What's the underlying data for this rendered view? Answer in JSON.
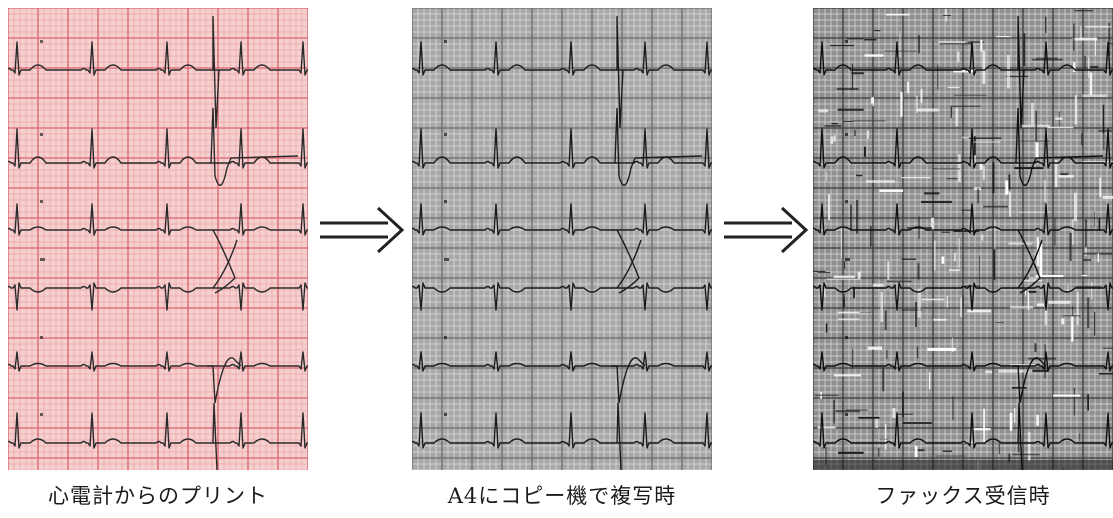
{
  "panels": [
    {
      "id": "original",
      "caption": "心電計からのプリント",
      "style": "pink-paper",
      "background": "#f6cfcf",
      "minor_grid": "#eaa3a6",
      "major_grid": "#d9636c",
      "trace": "#2a2a2a"
    },
    {
      "id": "copy",
      "caption": "A4にコピー機で複写時",
      "style": "grey-copy",
      "background": "#a7a7a7",
      "minor_grid": "#d8d8d8",
      "major_grid": "#6d6d6d",
      "trace": "#1c1c1c"
    },
    {
      "id": "fax",
      "caption": "ファックス受信時",
      "style": "fax-noise",
      "background": "#8f8f8f",
      "minor_grid": "#e4e4e4",
      "major_grid": "#3a3a3a",
      "trace": "#111111"
    }
  ],
  "arrow_icon": "double-right-arrow",
  "arrow_color": "#222222"
}
